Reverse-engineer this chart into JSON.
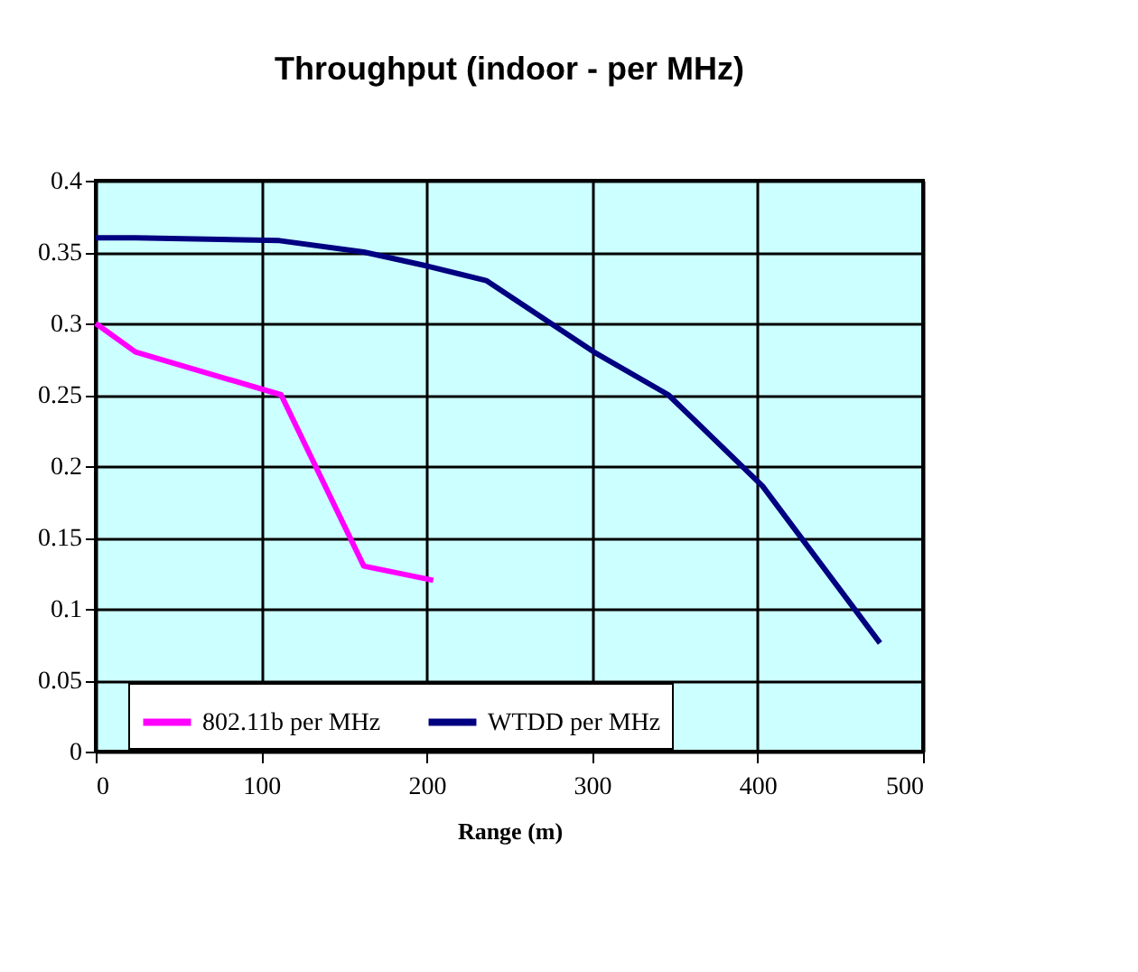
{
  "chart_data": {
    "type": "line",
    "title": "Throughput (indoor - per MHz)",
    "xlabel": "Range (m)",
    "series": [
      {
        "name": "802.11b per MHz",
        "color": "#ff00ff",
        "x": [
          0,
          24,
          112,
          162,
          204
        ],
        "values": [
          0.3,
          0.28,
          0.25,
          0.13,
          0.12
        ]
      },
      {
        "name": "WTDD per MHz",
        "color": "#000080",
        "x": [
          0,
          24,
          111,
          162,
          201,
          236,
          301,
          346,
          403,
          474
        ],
        "values": [
          0.36,
          0.36,
          0.358,
          0.35,
          0.34,
          0.33,
          0.28,
          0.25,
          0.186,
          0.076
        ]
      }
    ],
    "xlim": [
      0,
      500
    ],
    "xticks": [
      0,
      100,
      200,
      300,
      400,
      500
    ],
    "ylim": [
      0,
      0.4
    ],
    "yticks": [
      0,
      0.05,
      0.1,
      0.15,
      0.2,
      0.25,
      0.3,
      0.35,
      0.4
    ],
    "grid": true,
    "legend": "bottom",
    "marker": "none",
    "line_style": "solid"
  }
}
